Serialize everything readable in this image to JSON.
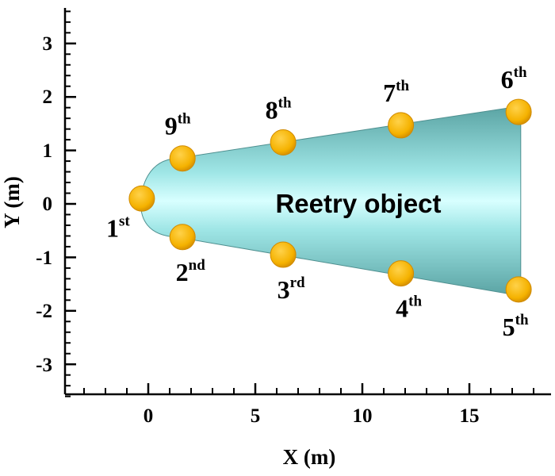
{
  "x_axis": {
    "title": "X (m)",
    "min": -3.8,
    "max": 18.5,
    "major_ticks": [
      0,
      5,
      10,
      15
    ],
    "tick_labels": [
      "0",
      "5",
      "10",
      "15"
    ],
    "minor_step": 1
  },
  "y_axis": {
    "title": "Y (m)",
    "min": -3.6,
    "max": 3.65,
    "major_ticks": [
      3,
      2,
      1,
      0,
      -1,
      -2,
      -3
    ],
    "tick_labels": [
      "3",
      "2",
      "1",
      "0",
      "-1",
      "-2",
      "-3"
    ],
    "minor_step": 0.2
  },
  "object_label": "Reetry object",
  "colors": {
    "body_light": "#cfffff",
    "body_mid": "#8fdcdc",
    "body_dark": "#5aa3a3",
    "sensor_fill": "#f5b200",
    "sensor_edge": "#d08a00"
  },
  "points": [
    {
      "num": "1",
      "sup": "st",
      "x": -0.3,
      "y": 0.1
    },
    {
      "num": "2",
      "sup": "nd",
      "x": 1.6,
      "y": -0.62
    },
    {
      "num": "3",
      "sup": "rd",
      "x": 6.3,
      "y": -0.95
    },
    {
      "num": "4",
      "sup": "th",
      "x": 11.8,
      "y": -1.3
    },
    {
      "num": "5",
      "sup": "th",
      "x": 17.3,
      "y": -1.6
    },
    {
      "num": "6",
      "sup": "th",
      "x": 17.3,
      "y": 1.72
    },
    {
      "num": "7",
      "sup": "th",
      "x": 11.8,
      "y": 1.47
    },
    {
      "num": "8",
      "sup": "th",
      "x": 6.3,
      "y": 1.15
    },
    {
      "num": "9",
      "sup": "th",
      "x": 1.6,
      "y": 0.85
    }
  ]
}
